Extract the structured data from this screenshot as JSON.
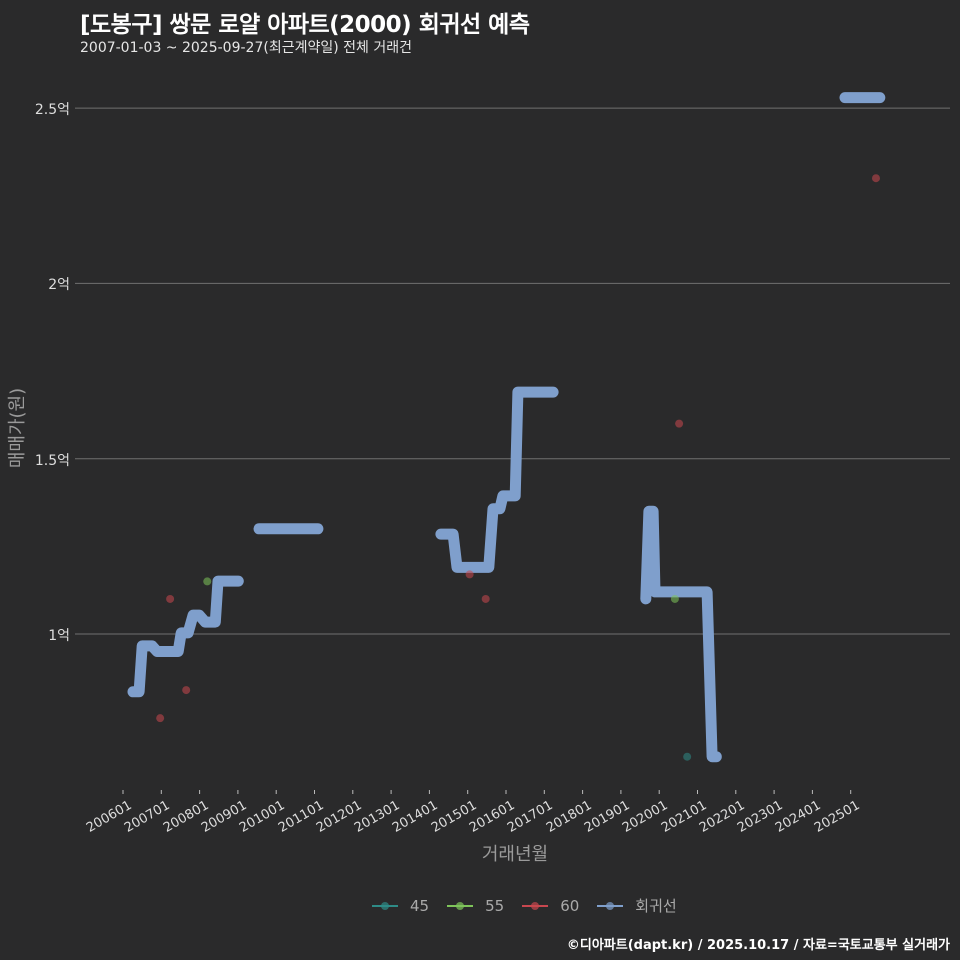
{
  "header": {
    "title": "[도봉구] 쌍문 로얄 아파트(2000) 회귀선 예측",
    "subtitle": "2007-01-03 ~ 2025-09-27(최근계약일) 전체 거래건"
  },
  "caption": "©디아파트(dapt.kr) / 2025.10.17 / 자료=국토교통부 실거래가",
  "colors": {
    "background": "#2a2a2b",
    "grid": "#707070",
    "s45": "#2e8b87",
    "s55": "#7ec45a",
    "s60": "#c8474f",
    "regression": "#7f9fcc"
  },
  "chart_data": {
    "type": "line",
    "title": "[도봉구] 쌍문 로얄 아파트(2000) 회귀선 예측",
    "subtitle": "2007-01-03 ~ 2025-09-27(최근계약일) 전체 거래건",
    "xlabel": "거래년월",
    "ylabel": "매매가(원)",
    "x_ticks": [
      "200601",
      "200701",
      "200801",
      "200901",
      "201001",
      "201101",
      "201201",
      "201301",
      "201401",
      "201501",
      "201601",
      "201701",
      "201801",
      "201901",
      "202001",
      "202101",
      "202201",
      "202301",
      "202401",
      "202501"
    ],
    "y_ticks": [
      {
        "value": 1.0,
        "label": "1억"
      },
      {
        "value": 1.5,
        "label": "1.5억"
      },
      {
        "value": 2.0,
        "label": "2억"
      },
      {
        "value": 2.5,
        "label": "2.5억"
      }
    ],
    "ylim": [
      0.56,
      2.6
    ],
    "xlim": [
      2005.6,
      2028.4
    ],
    "grid": "horizontal",
    "legend_position": "bottom",
    "legend": [
      "45",
      "55",
      "60",
      "회귀선"
    ],
    "series": [
      {
        "name": "45",
        "type": "scatter",
        "color": "#2e8b87",
        "points": [
          [
            2020.73,
            0.65
          ]
        ]
      },
      {
        "name": "55",
        "type": "scatter",
        "color": "#7ec45a",
        "points": [
          [
            2008.2,
            1.15
          ],
          [
            2020.41,
            1.1
          ]
        ]
      },
      {
        "name": "60",
        "type": "scatter",
        "color": "#c8474f",
        "points": [
          [
            2007.23,
            1.1
          ],
          [
            2006.97,
            0.76
          ],
          [
            2007.65,
            0.84
          ],
          [
            2015.05,
            1.17
          ],
          [
            2015.47,
            1.1
          ],
          [
            2020.52,
            1.6
          ],
          [
            2025.66,
            2.3
          ]
        ]
      },
      {
        "name": "회귀선",
        "type": "line",
        "color": "#7f9fcc",
        "segments": [
          [
            [
              2006.26,
              0.835
            ],
            [
              2006.42,
              0.835
            ],
            [
              2006.5,
              0.966
            ],
            [
              2006.76,
              0.966
            ],
            [
              2006.89,
              0.95
            ],
            [
              2007.44,
              0.95
            ],
            [
              2007.52,
              1.003
            ],
            [
              2007.7,
              1.003
            ],
            [
              2007.83,
              1.054
            ],
            [
              2007.99,
              1.054
            ],
            [
              2008.15,
              1.034
            ],
            [
              2008.41,
              1.034
            ],
            [
              2008.48,
              1.151
            ],
            [
              2009.01,
              1.151
            ]
          ],
          [
            [
              2009.55,
              1.3
            ],
            [
              2011.09,
              1.3
            ]
          ],
          [
            [
              2014.3,
              1.285
            ],
            [
              2014.62,
              1.285
            ],
            [
              2014.72,
              1.19
            ],
            [
              2015.55,
              1.19
            ],
            [
              2015.66,
              1.357
            ],
            [
              2015.84,
              1.357
            ],
            [
              2015.92,
              1.394
            ],
            [
              2016.24,
              1.394
            ],
            [
              2016.31,
              1.69
            ],
            [
              2017.23,
              1.69
            ]
          ],
          [
            [
              2019.65,
              1.1
            ],
            [
              2019.73,
              1.35
            ],
            [
              2019.84,
              1.35
            ],
            [
              2019.89,
              1.12
            ],
            [
              2021.25,
              1.12
            ],
            [
              2021.38,
              0.65
            ],
            [
              2021.49,
              0.65
            ]
          ],
          [
            [
              2024.85,
              2.53
            ],
            [
              2025.76,
              2.53
            ]
          ]
        ]
      }
    ]
  }
}
